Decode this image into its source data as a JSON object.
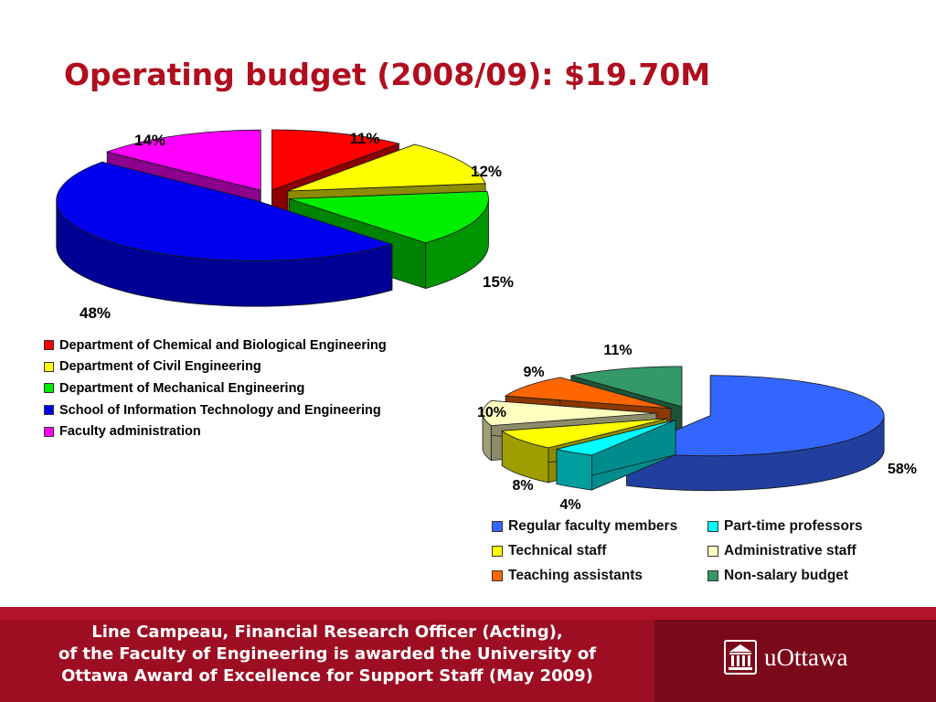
{
  "title": "Operating budget (2008/09): $19.70M",
  "chart_data": [
    {
      "type": "pie",
      "values": [
        11,
        12,
        15,
        48,
        14
      ],
      "value_labels": [
        "11%",
        "12%",
        "15%",
        "48%",
        "14%"
      ],
      "categories": [
        "Department of Chemical and Biological Engineering",
        "Department of Civil Engineering",
        "Department of Mechanical Engineering",
        "School of Information Technology and Engineering",
        "Faculty administration"
      ],
      "colors": [
        "#ff0000",
        "#ffff00",
        "#00ee00",
        "#0000ee",
        "#ff00ff"
      ],
      "exploded": [
        true,
        true,
        true,
        true,
        true
      ],
      "style": "3d-exploded",
      "legend_position": "bottom-left"
    },
    {
      "type": "pie",
      "values": [
        58,
        4,
        8,
        10,
        9,
        11
      ],
      "value_labels": [
        "58%",
        "4%",
        "8%",
        "10%",
        "9%",
        "11%"
      ],
      "categories": [
        "Regular faculty members",
        "Part-time professors",
        "Technical staff",
        "Administrative staff",
        "Teaching assistants",
        "Non-salary budget"
      ],
      "colors": [
        "#3366ff",
        "#00ffff",
        "#ffff00",
        "#ffffc0",
        "#ff6600",
        "#339966"
      ],
      "exploded": [
        true,
        true,
        true,
        true,
        true,
        true
      ],
      "style": "3d-exploded",
      "legend_position": "bottom"
    }
  ],
  "footer": {
    "lines": [
      "Line Campeau, Financial Research Officer (Acting),",
      "of the Faculty of Engineering is awarded the University of",
      "Ottawa Award of Excellence for Support Staff (May 2009)"
    ],
    "logo_text": "uOttawa",
    "logo_icon": "university-building-icon"
  }
}
